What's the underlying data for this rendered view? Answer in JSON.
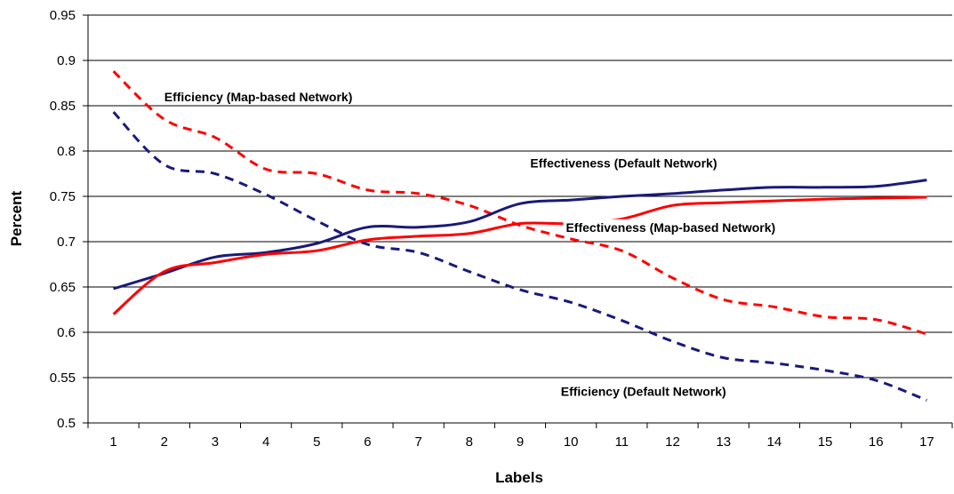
{
  "chart_data": {
    "type": "line",
    "xlabel": "Labels",
    "ylabel": "Percent",
    "x": [
      1,
      2,
      3,
      4,
      5,
      6,
      7,
      8,
      9,
      10,
      11,
      12,
      13,
      14,
      15,
      16,
      17
    ],
    "xlim": [
      0.5,
      17.5
    ],
    "ylim": [
      0.5,
      0.95
    ],
    "yticks": [
      "0.5",
      "0.55",
      "0.6",
      "0.65",
      "0.7",
      "0.75",
      "0.8",
      "0.85",
      "0.9",
      "0.95"
    ],
    "xticks": [
      "1",
      "2",
      "3",
      "4",
      "5",
      "6",
      "7",
      "8",
      "9",
      "10",
      "11",
      "12",
      "13",
      "14",
      "15",
      "16",
      "17"
    ],
    "grid": "horizontal",
    "legend": "none",
    "series": [
      {
        "name": "Efficiency (Map-based Network)",
        "style": "dashed",
        "color": "#ff0000",
        "values": [
          0.888,
          0.835,
          0.815,
          0.78,
          0.775,
          0.757,
          0.753,
          0.74,
          0.718,
          0.703,
          0.69,
          0.66,
          0.636,
          0.628,
          0.617,
          0.614,
          0.598
        ]
      },
      {
        "name": "Efficiency (Default Network)",
        "style": "dashed",
        "color": "#1a1a7a",
        "values": [
          0.843,
          0.785,
          0.775,
          0.752,
          0.723,
          0.697,
          0.688,
          0.667,
          0.647,
          0.633,
          0.613,
          0.59,
          0.572,
          0.566,
          0.558,
          0.547,
          0.525
        ]
      },
      {
        "name": "Effectiveness (Default Network)",
        "style": "solid",
        "color": "#1a1a7a",
        "values": [
          0.648,
          0.665,
          0.683,
          0.688,
          0.698,
          0.716,
          0.716,
          0.722,
          0.742,
          0.746,
          0.75,
          0.753,
          0.757,
          0.76,
          0.76,
          0.761,
          0.768
        ]
      },
      {
        "name": "Effectiveness (Map-based Network)",
        "style": "solid",
        "color": "#ff0000",
        "values": [
          0.62,
          0.667,
          0.677,
          0.686,
          0.69,
          0.702,
          0.706,
          0.709,
          0.72,
          0.72,
          0.725,
          0.74,
          0.743,
          0.745,
          0.747,
          0.748,
          0.749
        ]
      }
    ],
    "annotations": [
      {
        "text": "Efficiency (Map-based Network)",
        "series": "Efficiency (Map-based Network)",
        "x": 2.0,
        "y": 0.855
      },
      {
        "text": "Effectiveness (Default Network)",
        "series": "Effectiveness (Default Network)",
        "x": 9.2,
        "y": 0.782
      },
      {
        "text": "Effectiveness (Map-based Network)",
        "series": "Effectiveness (Map-based Network)",
        "x": 9.9,
        "y": 0.711
      },
      {
        "text": "Efficiency (Default Network)",
        "series": "Efficiency (Default Network)",
        "x": 9.8,
        "y": 0.53
      }
    ]
  }
}
